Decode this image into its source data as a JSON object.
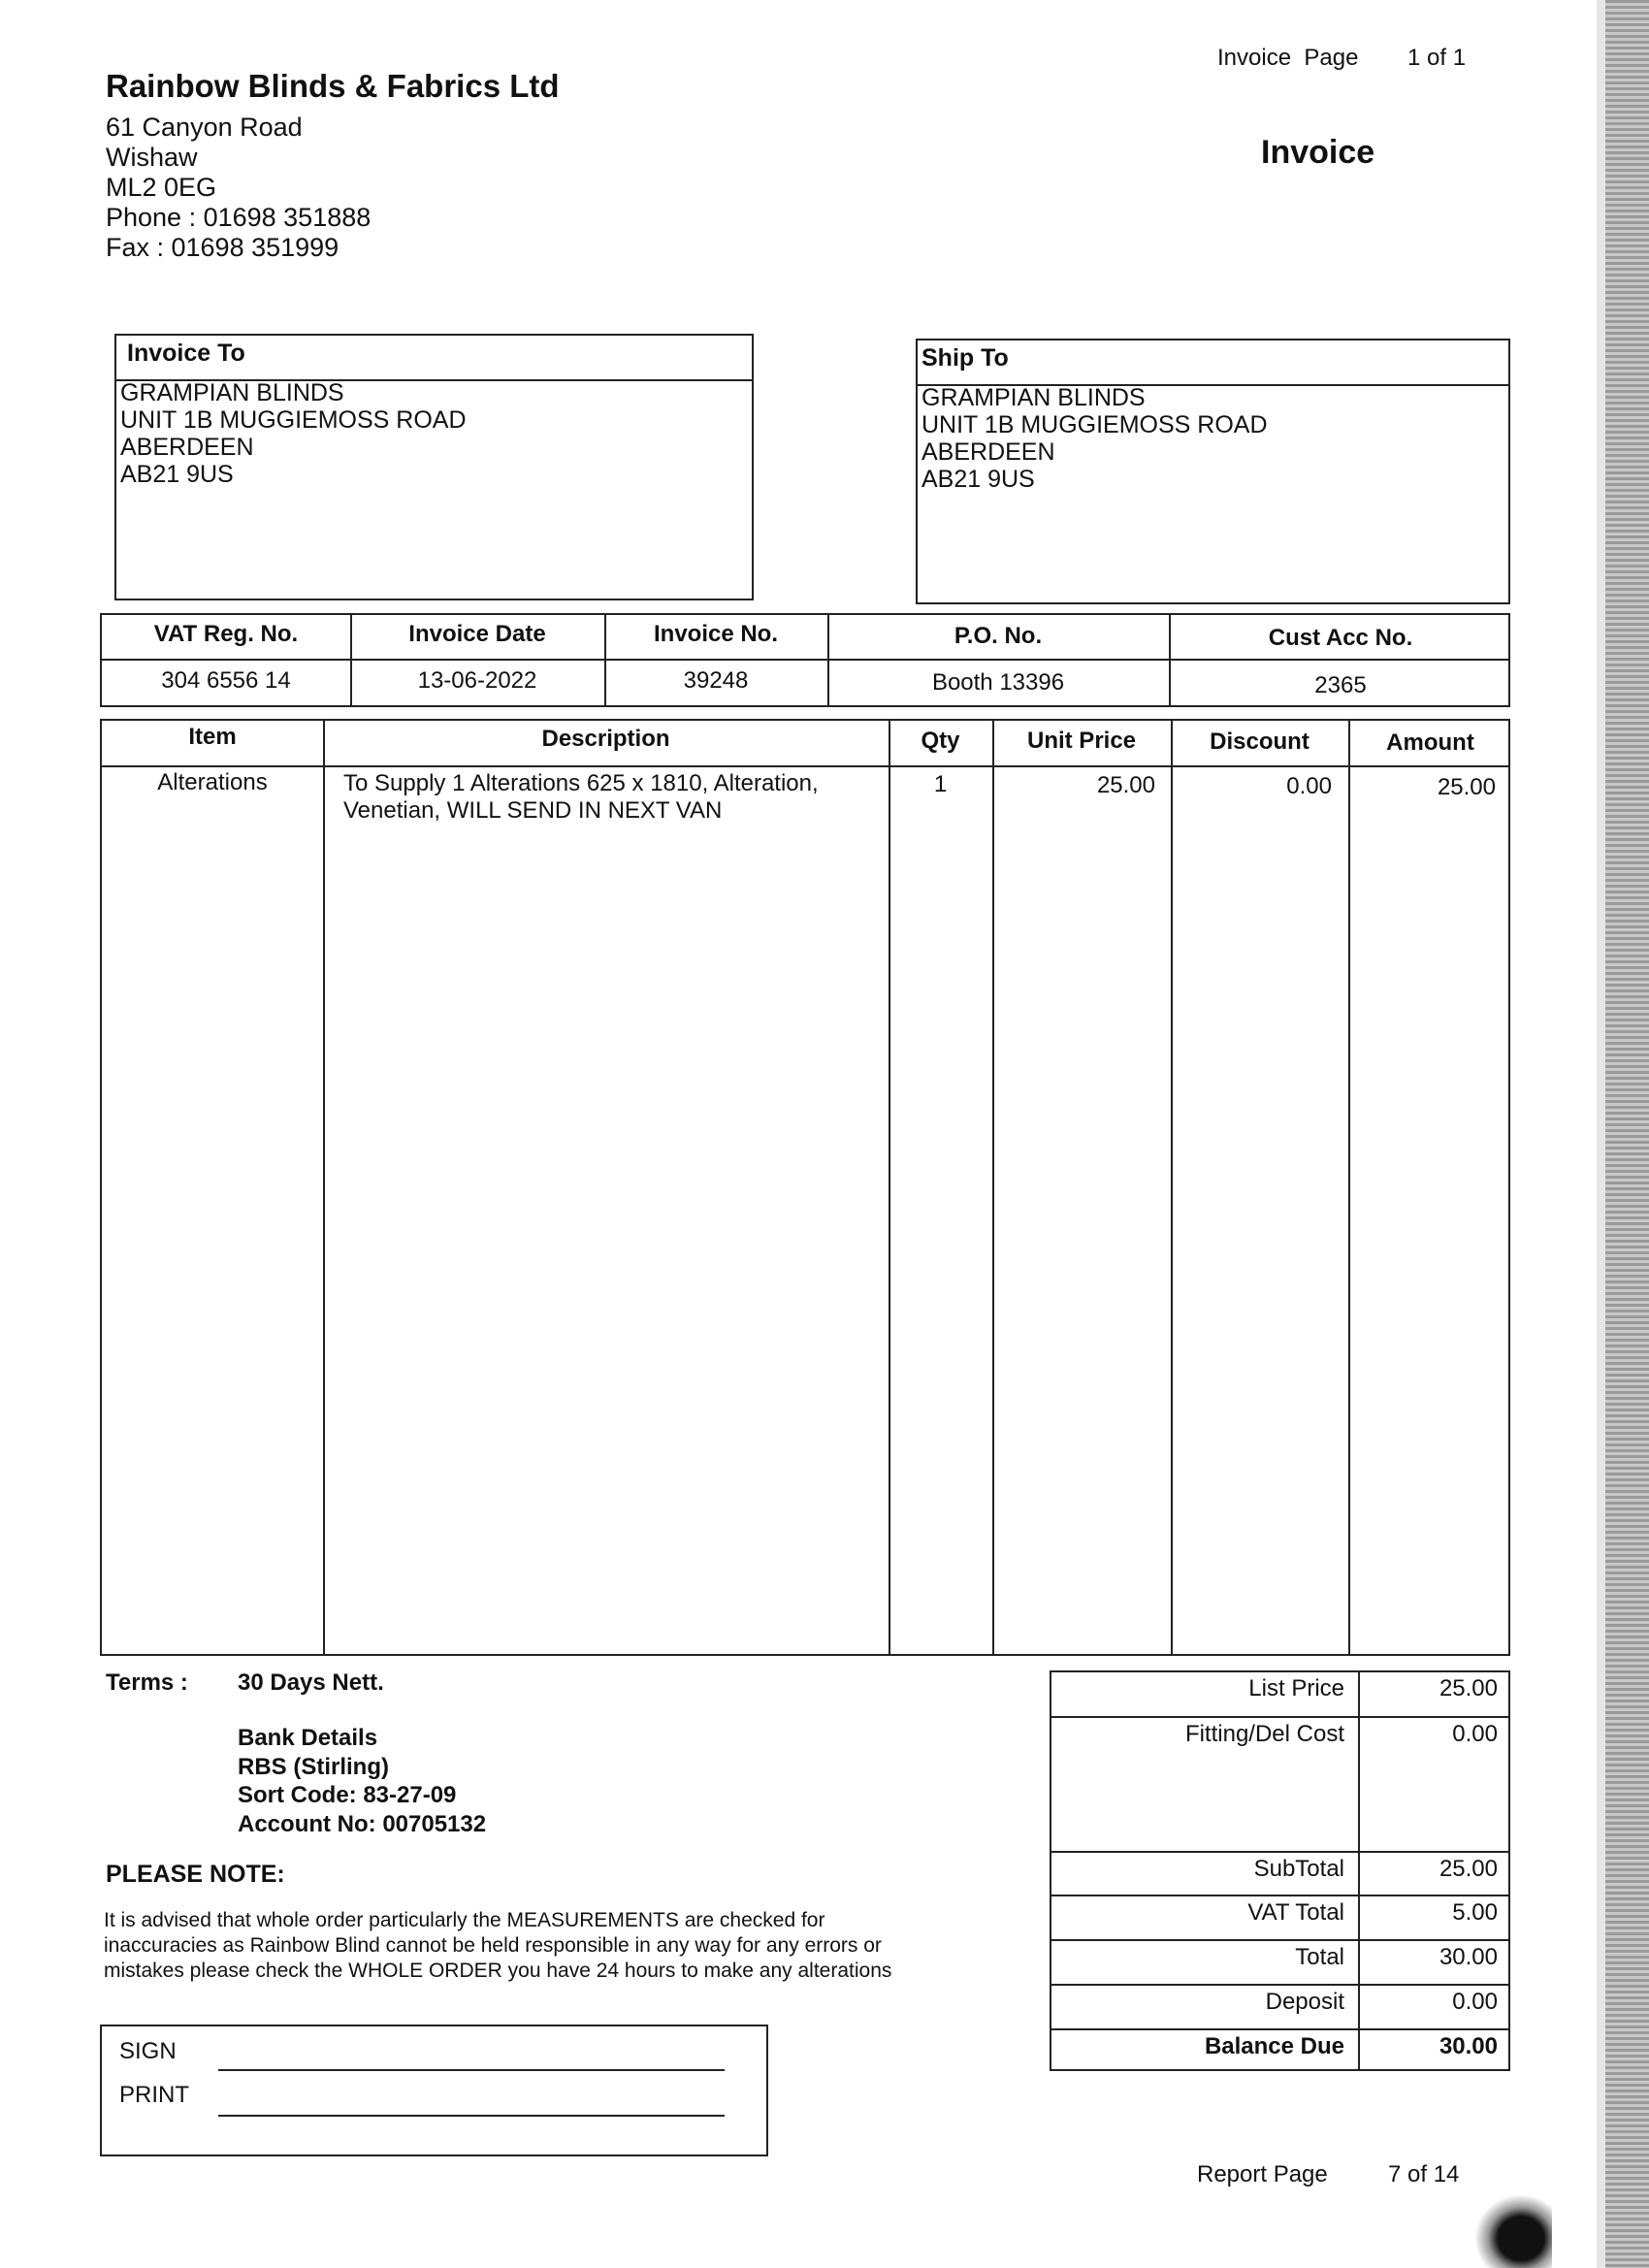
{
  "header": {
    "company_name": "Rainbow Blinds & Fabrics Ltd",
    "address_lines": [
      "61 Canyon Road",
      "Wishaw",
      "ML2 0EG",
      "Phone : 01698 351888",
      "Fax : 01698 351999"
    ],
    "invoice_page_label": "Invoice  Page",
    "invoice_page_value": "1 of 1",
    "doc_title": "Invoice"
  },
  "invoice_to": {
    "title": "Invoice To",
    "lines": [
      "GRAMPIAN BLINDS",
      "UNIT 1B MUGGIEMOSS ROAD",
      "ABERDEEN",
      "AB21 9US"
    ]
  },
  "ship_to": {
    "title": "Ship To",
    "lines": [
      "GRAMPIAN BLINDS",
      "UNIT 1B MUGGIEMOSS ROAD",
      "ABERDEEN",
      "AB21 9US"
    ]
  },
  "info": {
    "headers": [
      "VAT Reg. No.",
      "Invoice Date",
      "Invoice No.",
      "P.O. No.",
      "Cust Acc No."
    ],
    "values": [
      "304 6556 14",
      "13-06-2022",
      "39248",
      "Booth 13396",
      "2365"
    ]
  },
  "items": {
    "headers": [
      "Item",
      "Description",
      "Qty",
      "Unit Price",
      "Discount",
      "Amount"
    ],
    "rows": [
      {
        "item": "Alterations",
        "description_lines": [
          "To Supply 1 Alterations  625 x 1810, Alteration,",
          "Venetian, WILL SEND IN NEXT VAN"
        ],
        "qty": "1",
        "unit_price": "25.00",
        "discount": "0.00",
        "amount": "25.00"
      }
    ]
  },
  "terms": {
    "label": "Terms :",
    "value": "30 Days Nett."
  },
  "bank": [
    "Bank Details",
    "RBS (Stirling)",
    "Sort Code: 83-27-09",
    "Account No: 00705132"
  ],
  "note": {
    "title": "PLEASE NOTE:",
    "lines": [
      "It is advised that whole order particularly the MEASUREMENTS are checked for",
      "inaccuracies as Rainbow Blind cannot be held responsible in any way for any errors or",
      "mistakes please check the WHOLE ORDER you have 24 hours to make any alterations"
    ]
  },
  "signature": {
    "sign_label": "SIGN",
    "print_label": "PRINT"
  },
  "totals": [
    {
      "label": "List Price",
      "value": "25.00"
    },
    {
      "label": "Fitting/Del Cost",
      "value": "0.00"
    },
    {
      "label": "SubTotal",
      "value": "25.00"
    },
    {
      "label": "VAT Total",
      "value": "5.00"
    },
    {
      "label": "Total",
      "value": "30.00"
    },
    {
      "label": "Deposit",
      "value": "0.00"
    },
    {
      "label": "Balance Due",
      "value": "30.00"
    }
  ],
  "footer": {
    "report_page_label": "Report Page",
    "report_page_value": "7 of 14"
  }
}
